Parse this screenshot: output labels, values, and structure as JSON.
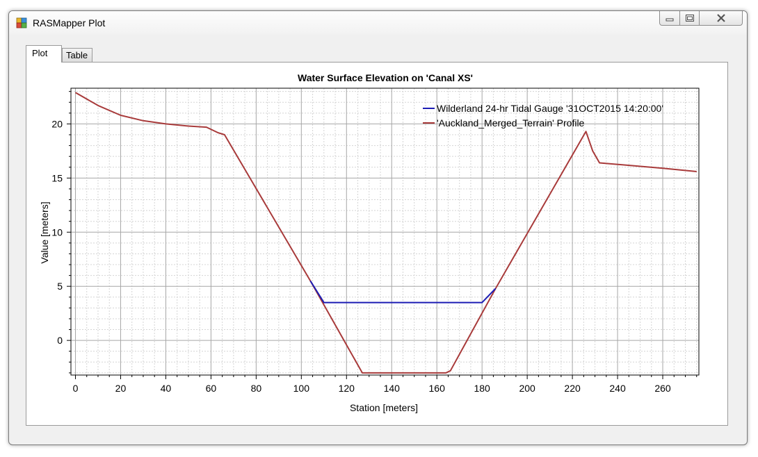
{
  "window": {
    "title": "RASMapper Plot",
    "icons": {
      "app": "rasmapper-app-icon",
      "minimize": "minimize-icon",
      "maximize": "maximize-icon",
      "close": "close-icon"
    }
  },
  "tabs": [
    {
      "label": "Plot",
      "active": true
    },
    {
      "label": "Table",
      "active": false
    }
  ],
  "chart_data": {
    "type": "line",
    "title": "Water Surface Elevation on 'Canal XS'",
    "xlabel": "Station [meters]",
    "ylabel": "Value [meters]",
    "xlim": [
      -2,
      276
    ],
    "ylim": [
      -3.2,
      23.3
    ],
    "xticks": [
      0,
      20,
      40,
      60,
      80,
      100,
      120,
      140,
      160,
      180,
      200,
      220,
      240,
      260
    ],
    "xtick_labels": [
      "0",
      "20",
      "40",
      "60",
      "80",
      "100",
      "120",
      "140",
      "160",
      "180",
      "200",
      "220",
      "240",
      "260"
    ],
    "yticks": [
      0,
      5,
      10,
      15,
      20
    ],
    "ytick_labels": [
      "0",
      "5",
      "10",
      "15",
      "20"
    ],
    "grid": true,
    "legend_position": "top-right",
    "series": [
      {
        "name": "Wilderland 24-hr Tidal Gauge '31OCT2015 14:20:00'",
        "color": "#1c1cb4",
        "x": [
          104,
          110,
          180,
          186
        ],
        "y": [
          5.5,
          3.5,
          3.5,
          4.8
        ]
      },
      {
        "name": "'Auckland_Merged_Terrain' Profile",
        "color": "#a83a3a",
        "x": [
          0,
          10,
          20,
          30,
          40,
          50,
          58,
          63,
          66,
          104,
          127,
          140,
          150,
          160,
          164,
          166,
          186,
          226,
          229,
          232,
          260,
          275
        ],
        "y": [
          22.9,
          21.7,
          20.8,
          20.3,
          20.0,
          19.8,
          19.7,
          19.2,
          19.0,
          5.5,
          -3.0,
          -3.0,
          -3.0,
          -3.0,
          -3.0,
          -2.8,
          4.8,
          19.3,
          17.5,
          16.4,
          15.9,
          15.6
        ]
      }
    ]
  }
}
